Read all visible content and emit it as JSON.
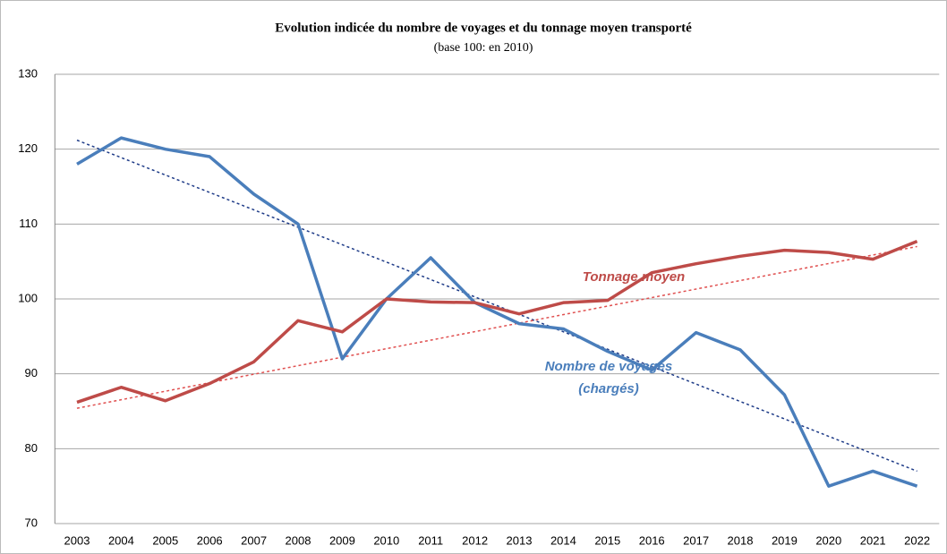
{
  "chart_data": {
    "type": "line",
    "title": "Evolution indicée du nombre de voyages et du tonnage moyen transporté",
    "subtitle": "(base 100: en 2010)",
    "categories": [
      "2003",
      "2004",
      "2005",
      "2006",
      "2007",
      "2008",
      "2009",
      "2010",
      "2011",
      "2012",
      "2013",
      "2014",
      "2015",
      "2016",
      "2017",
      "2018",
      "2019",
      "2020",
      "2021",
      "2022"
    ],
    "series": [
      {
        "color": "#4a7ebb",
        "values": [
          118,
          121.5,
          120,
          119,
          114,
          110,
          92,
          100,
          105.5,
          99.5,
          96.7,
          96,
          93,
          90.5,
          95.5,
          93.2,
          87.2,
          75,
          77,
          75
        ]
      },
      {
        "color": "#be4b48",
        "values": [
          86.2,
          88.2,
          86.4,
          88.7,
          91.6,
          97.1,
          95.6,
          100,
          99.6,
          99.5,
          98,
          99.5,
          99.8,
          103.5,
          104.7,
          105.7,
          106.5,
          106.2,
          105.3,
          107.7
        ]
      }
    ],
    "trendlines": [
      {
        "color": "#1f3c88",
        "values": [
          121.2,
          77
        ]
      },
      {
        "color": "#e05050",
        "values": [
          85.4,
          107
        ]
      }
    ],
    "annotations": [
      {
        "text": "Tonnage moyen",
        "color": "#be4b48"
      },
      {
        "text": "Nombre de voyages",
        "color": "#4a7ebb"
      },
      {
        "text": "(chargés)",
        "color": "#4a7ebb"
      }
    ],
    "ylim": [
      70,
      130
    ],
    "yticks": [
      70,
      80,
      90,
      100,
      110,
      120,
      130
    ],
    "grid": true
  }
}
